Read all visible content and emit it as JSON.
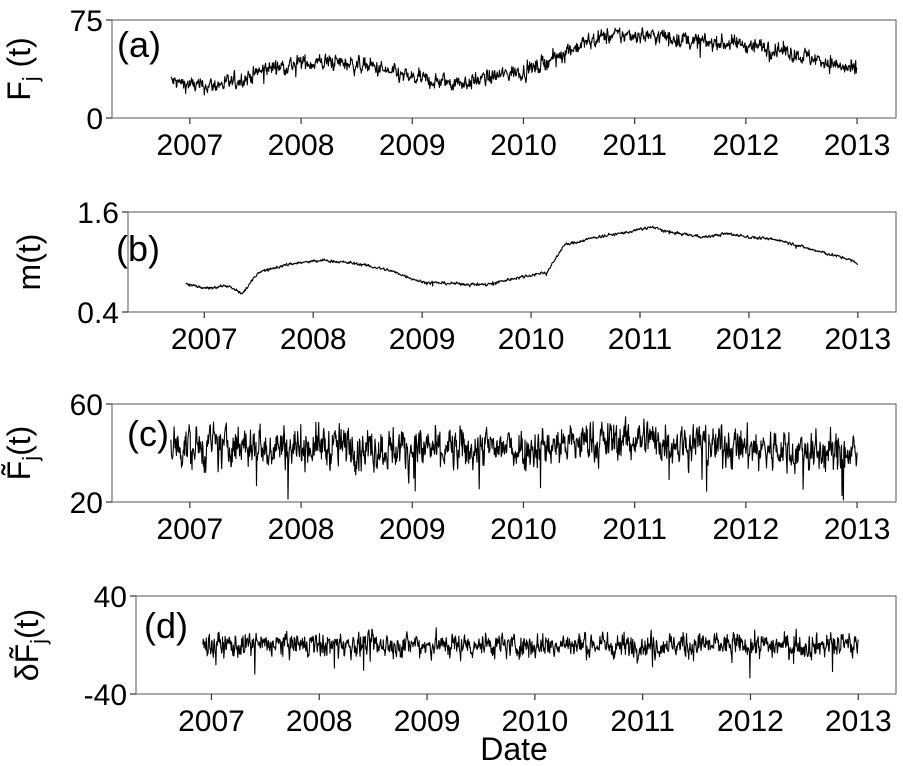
{
  "xlabel": "Date",
  "chart_data": [
    {
      "type": "line",
      "panel_label": "(a)",
      "ylabel": "F_j (t)",
      "ylabel_parts": {
        "base": "F",
        "sub": "j",
        "suffix": " (t)"
      },
      "ylim": [
        0,
        75
      ],
      "yticks": [
        0,
        75
      ],
      "xlim": [
        2006.3,
        2013.35
      ],
      "xticks": [
        "2007",
        "2008",
        "2009",
        "2010",
        "2011",
        "2012",
        "2013"
      ],
      "x_start": 2006.83,
      "x_end": 2013.0,
      "series": [
        {
          "trend_x": [
            2006.83,
            2007.1,
            2007.4,
            2007.7,
            2008.0,
            2008.3,
            2008.6,
            2008.9,
            2009.2,
            2009.5,
            2009.8,
            2010.1,
            2010.4,
            2010.7,
            2011.0,
            2011.3,
            2011.6,
            2011.9,
            2012.2,
            2012.5,
            2012.8,
            2013.0
          ],
          "trend_y": [
            28,
            24,
            27,
            38,
            42,
            43,
            40,
            32,
            28,
            27,
            33,
            38,
            52,
            62,
            64,
            62,
            58,
            57,
            54,
            48,
            41,
            35
          ],
          "noise": 10
        }
      ]
    },
    {
      "type": "line",
      "panel_label": "(b)",
      "ylabel": "m(t)",
      "ylim": [
        0.4,
        1.6
      ],
      "yticks": [
        0.4,
        1.6
      ],
      "xlim": [
        2006.3,
        2013.35
      ],
      "xticks": [
        "2007",
        "2008",
        "2009",
        "2010",
        "2011",
        "2012",
        "2013"
      ],
      "x_start": 2006.83,
      "x_end": 2013.0,
      "series": [
        {
          "trend_x": [
            2006.83,
            2007.0,
            2007.2,
            2007.35,
            2007.5,
            2007.8,
            2008.1,
            2008.4,
            2008.7,
            2009.0,
            2009.3,
            2009.6,
            2009.9,
            2010.15,
            2010.3,
            2010.6,
            2010.9,
            2011.1,
            2011.3,
            2011.6,
            2011.8,
            2012.0,
            2012.3,
            2012.6,
            2012.9,
            2013.0
          ],
          "trend_y": [
            0.74,
            0.68,
            0.72,
            0.62,
            0.88,
            0.98,
            1.02,
            0.98,
            0.9,
            0.76,
            0.74,
            0.73,
            0.82,
            0.88,
            1.2,
            1.3,
            1.36,
            1.42,
            1.35,
            1.3,
            1.34,
            1.3,
            1.26,
            1.14,
            1.04,
            0.98
          ],
          "noise": 0.03
        }
      ]
    },
    {
      "type": "line",
      "panel_label": "(c)",
      "ylabel": "F̃_j(t)",
      "ylabel_parts": {
        "base": "F̃",
        "sub": "j",
        "suffix": "(t)"
      },
      "ylim": [
        20,
        60
      ],
      "yticks": [
        20,
        60
      ],
      "xlim": [
        2006.3,
        2013.35
      ],
      "xticks": [
        "2007",
        "2008",
        "2009",
        "2010",
        "2011",
        "2012",
        "2013"
      ],
      "x_start": 2006.83,
      "x_end": 2013.0,
      "series": [
        {
          "trend_x": [
            2006.83,
            2008.0,
            2009.5,
            2010.5,
            2011.0,
            2012.0,
            2013.0
          ],
          "trend_y": [
            42,
            43,
            41,
            44,
            46,
            42,
            39
          ],
          "noise": 14
        }
      ]
    },
    {
      "type": "line",
      "panel_label": "(d)",
      "ylabel": "δF̃_j(t)",
      "ylabel_parts": {
        "base": "δF̃",
        "sub": "j",
        "suffix": "(t)"
      },
      "ylim": [
        -40,
        40
      ],
      "yticks": [
        -40,
        40
      ],
      "xlim": [
        2006.3,
        2013.35
      ],
      "xticks": [
        "2007",
        "2008",
        "2009",
        "2010",
        "2011",
        "2012",
        "2013"
      ],
      "x_start": 2006.92,
      "x_end": 2013.0,
      "series": [
        {
          "trend_x": [
            2006.92,
            2013.0
          ],
          "trend_y": [
            0,
            0
          ],
          "noise": 16
        }
      ]
    }
  ]
}
